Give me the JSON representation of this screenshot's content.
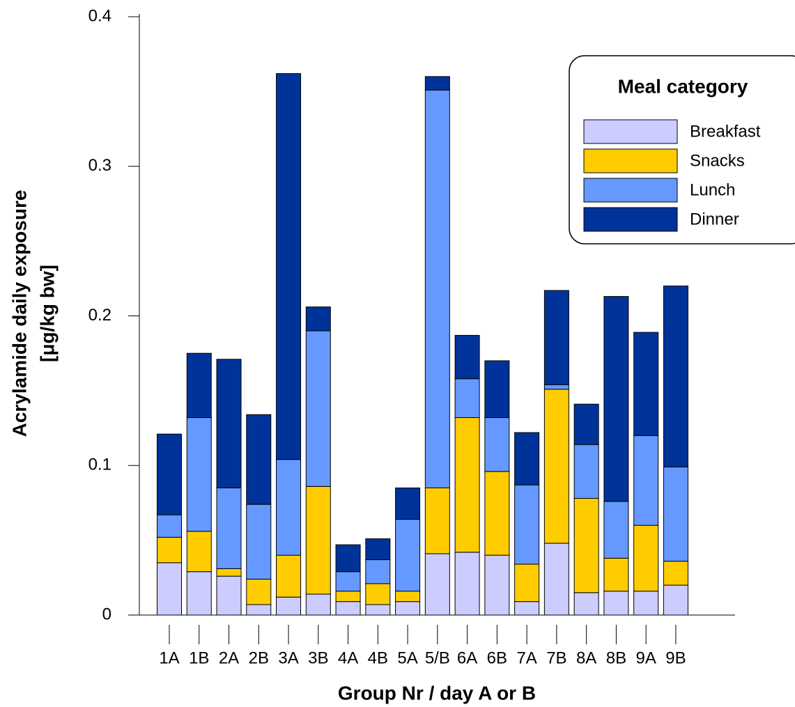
{
  "chart_data": {
    "type": "stacked_bar",
    "y_label": [
      "Acrylamide daily exposure",
      "[μg/kg bw]"
    ],
    "x_label": "Group Nr / day A or B",
    "categories": [
      "1A",
      "1B",
      "2A",
      "2B",
      "3A",
      "3B",
      "4A",
      "4B",
      "5A",
      "5/B",
      "6A",
      "6B",
      "7A",
      "7B",
      "8A",
      "8B",
      "9A",
      "9B"
    ],
    "series": [
      {
        "name": "Breakfast",
        "color": "#ccccff",
        "values": [
          0.035,
          0.029,
          0.026,
          0.007,
          0.012,
          0.014,
          0.009,
          0.007,
          0.009,
          0.041,
          0.042,
          0.04,
          0.009,
          0.048,
          0.015,
          0.016,
          0.016,
          0.02
        ]
      },
      {
        "name": "Snacks",
        "color": "#ffcc00",
        "values": [
          0.017,
          0.027,
          0.005,
          0.017,
          0.028,
          0.072,
          0.007,
          0.014,
          0.007,
          0.044,
          0.09,
          0.056,
          0.025,
          0.103,
          0.063,
          0.022,
          0.044,
          0.016
        ]
      },
      {
        "name": "Lunch",
        "color": "#6699ff",
        "values": [
          0.015,
          0.076,
          0.054,
          0.05,
          0.064,
          0.104,
          0.013,
          0.016,
          0.048,
          0.266,
          0.026,
          0.036,
          0.053,
          0.003,
          0.036,
          0.038,
          0.06,
          0.063
        ]
      },
      {
        "name": "Dinner",
        "color": "#003399",
        "values": [
          0.054,
          0.043,
          0.086,
          0.06,
          0.258,
          0.016,
          0.018,
          0.014,
          0.021,
          0.009,
          0.029,
          0.038,
          0.035,
          0.063,
          0.027,
          0.137,
          0.069,
          0.121
        ]
      }
    ],
    "legend_title": "Meal category",
    "legend": "upper right",
    "ylim": [
      0,
      0.4
    ],
    "yticks": [
      0,
      0.1,
      0.2,
      0.3,
      0.4
    ],
    "grid": false
  }
}
